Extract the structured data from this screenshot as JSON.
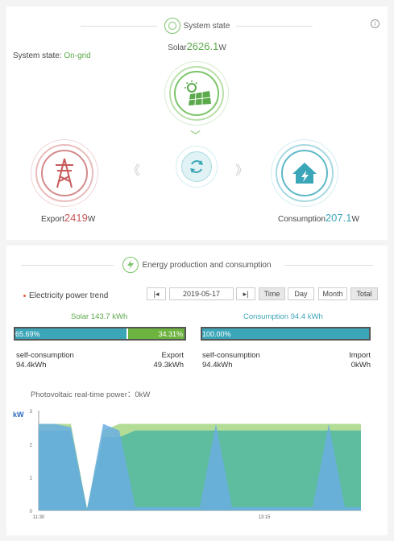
{
  "system_state": {
    "section_title": "System state",
    "info_icon": "i",
    "state_label": "System state:",
    "state_value": "On-grid",
    "solar_label": "Solar",
    "solar_value": "2626.1",
    "solar_unit": "W",
    "export_label": "Export",
    "export_value": "2419",
    "export_unit": "W",
    "consumption_label": "Consumption",
    "consumption_value": "207.1",
    "consumption_unit": "W",
    "colors": {
      "solar": "#5aa94a",
      "export": "#c85a5a",
      "consumption": "#3ca6b9"
    }
  },
  "energy": {
    "section_title": "Energy production and consumption",
    "trend_label": "Electricity power trend",
    "date_prev": "|◂",
    "date_value": "2019-05-17",
    "date_next": "▸|",
    "time_buttons": [
      "Time",
      "Day",
      "Month",
      "Total"
    ],
    "selected_time_button": "Time",
    "solar_title": "Solar 143.7 kWh",
    "consumption_title": "Consumption 94.4 kWh",
    "solar_bar": {
      "self_pct": "65.69%",
      "export_pct": "34.31%",
      "self_fraction": 0.6569
    },
    "consumption_bar": {
      "self_pct": "100.00%",
      "self_fraction": 1.0
    },
    "solar_self_label": "self-consumption",
    "solar_self_value": "94.4kWh",
    "solar_export_label": "Export",
    "solar_export_value": "49.3kWh",
    "cons_self_label": "self-consumption",
    "cons_self_value": "94.4kWh",
    "cons_import_label": "Import",
    "cons_import_value": "0kWh"
  },
  "chart_data": {
    "type": "area",
    "title": "Photovoltaic real-time power：0kW",
    "ylabel": "kW",
    "ylim": [
      0,
      3
    ],
    "yticks": [
      "0",
      "1",
      "2",
      "3"
    ],
    "xticks": [
      "11:30",
      "13:15"
    ],
    "x": [
      0,
      1,
      2,
      3,
      4,
      5,
      6,
      7,
      8,
      9,
      10,
      11,
      12,
      13,
      14,
      15,
      16,
      17,
      18,
      19,
      20
    ],
    "series": [
      {
        "name": "",
        "color": "#a6d785",
        "values": [
          2.6,
          2.6,
          2.6,
          0.05,
          2.4,
          2.6,
          2.6,
          2.6,
          2.6,
          2.6,
          2.6,
          2.6,
          2.6,
          2.6,
          2.6,
          2.6,
          2.6,
          2.6,
          2.6,
          2.6,
          2.6
        ]
      },
      {
        "name": "",
        "color": "#4fb7a0",
        "values": [
          2.4,
          2.4,
          2.4,
          0.05,
          2.2,
          2.2,
          2.4,
          2.4,
          2.4,
          2.4,
          2.4,
          2.4,
          2.4,
          2.4,
          2.4,
          2.4,
          2.4,
          2.4,
          2.4,
          2.4,
          2.4
        ]
      },
      {
        "name": "",
        "color": "#6aaee0",
        "values": [
          2.6,
          2.6,
          2.5,
          0.02,
          2.6,
          2.4,
          0.1,
          0.1,
          0.1,
          0.1,
          0.1,
          2.6,
          0.1,
          0.1,
          0.1,
          0.1,
          0.1,
          0.1,
          2.6,
          0.1,
          0.1
        ]
      }
    ]
  }
}
